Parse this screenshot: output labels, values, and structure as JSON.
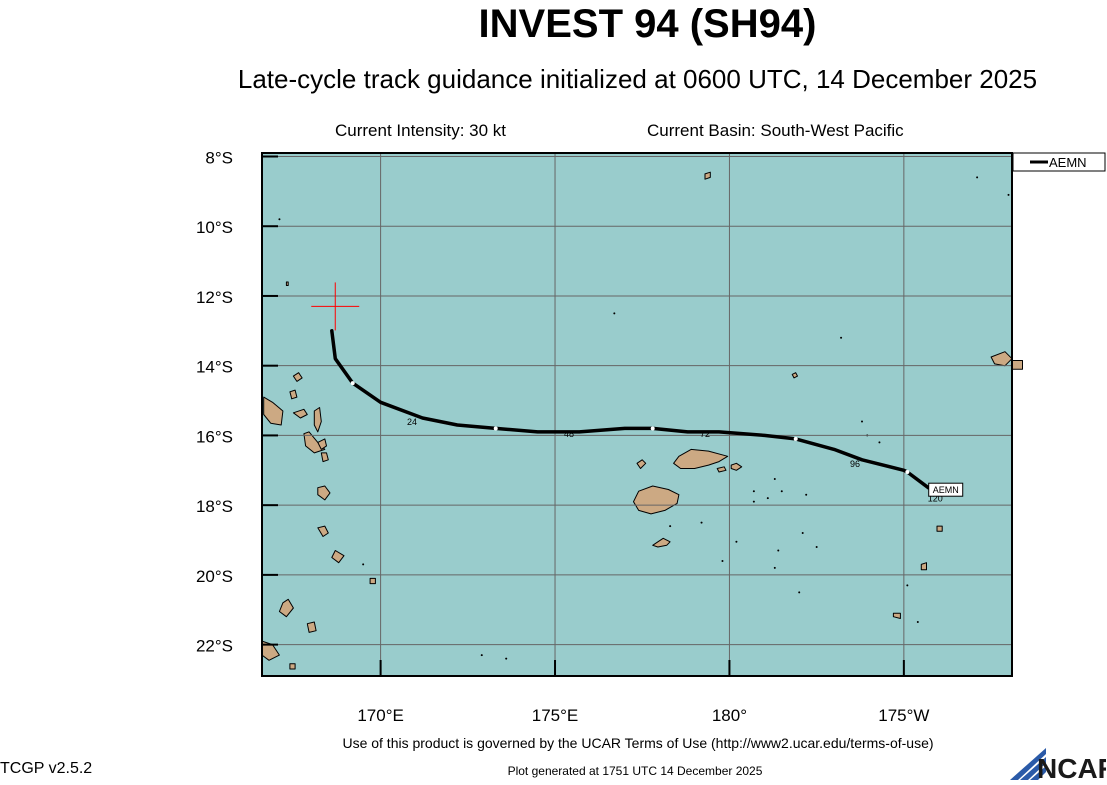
{
  "header": {
    "title": "INVEST 94 (SH94)",
    "subtitle": "Late-cycle track guidance initialized at 0600 UTC, 14 December 2025",
    "intensity": "Current Intensity: 30 kt",
    "basin": "Current Basin: South-West Pacific"
  },
  "map": {
    "lon_range": [
      166.6,
      188.1
    ],
    "lat_range": [
      -22.9,
      -7.9
    ],
    "ocean_color": "#99cccc",
    "land_color": "#cca983",
    "lat_ticks": [
      {
        "value": -8,
        "label": "8°S"
      },
      {
        "value": -10,
        "label": "10°S"
      },
      {
        "value": -12,
        "label": "12°S"
      },
      {
        "value": -14,
        "label": "14°S"
      },
      {
        "value": -16,
        "label": "16°S"
      },
      {
        "value": -18,
        "label": "18°S"
      },
      {
        "value": -20,
        "label": "20°S"
      },
      {
        "value": -22,
        "label": "22°S"
      }
    ],
    "lon_ticks": [
      {
        "value": 170,
        "label": "170°E"
      },
      {
        "value": 175,
        "label": "175°E"
      },
      {
        "value": 180,
        "label": "180°"
      },
      {
        "value": 185,
        "label": "175°W"
      }
    ],
    "current_position": {
      "lon": 168.7,
      "lat": -12.3,
      "color": "#ff0000"
    },
    "legend": {
      "label": "AEMN"
    },
    "track": {
      "name": "AEMN",
      "points": [
        [
          168.6,
          -13.0
        ],
        [
          168.7,
          -13.8
        ],
        [
          169.2,
          -14.5
        ],
        [
          170.0,
          -15.05
        ],
        [
          171.2,
          -15.5
        ],
        [
          172.2,
          -15.7
        ],
        [
          173.3,
          -15.8
        ],
        [
          174.5,
          -15.9
        ],
        [
          175.7,
          -15.9
        ],
        [
          177.0,
          -15.8
        ],
        [
          177.8,
          -15.8
        ],
        [
          178.8,
          -15.9
        ],
        [
          179.7,
          -15.9
        ],
        [
          181.0,
          -16.0
        ],
        [
          181.9,
          -16.1
        ],
        [
          183.0,
          -16.4
        ],
        [
          183.8,
          -16.7
        ],
        [
          185.0,
          -17.0
        ],
        [
          185.1,
          -17.05
        ],
        [
          185.7,
          -17.5
        ]
      ],
      "white_ticks": [
        [
          169.2,
          -14.5
        ],
        [
          173.3,
          -15.8
        ],
        [
          177.8,
          -15.8
        ],
        [
          181.9,
          -16.1
        ],
        [
          185.1,
          -17.05
        ]
      ],
      "hour_labels": [
        {
          "label": "24",
          "lon": 170.9,
          "lat": -15.7
        },
        {
          "label": "48",
          "lon": 175.4,
          "lat": -16.05
        },
        {
          "label": "72",
          "lon": 179.3,
          "lat": -16.05
        },
        {
          "label": "96",
          "lon": 183.6,
          "lat": -16.9
        },
        {
          "label": "120",
          "lon": 185.9,
          "lat": -17.9
        }
      ],
      "end_label": {
        "label": "AEMN",
        "lon": 186.2,
        "lat": -17.6
      }
    },
    "islands": [
      [
        [
          179.95,
          -16.6
        ],
        [
          179.4,
          -16.45
        ],
        [
          178.9,
          -16.4
        ],
        [
          178.55,
          -16.6
        ],
        [
          178.4,
          -16.8
        ],
        [
          178.6,
          -16.95
        ],
        [
          179.0,
          -16.95
        ],
        [
          179.4,
          -16.85
        ],
        [
          179.7,
          -16.75
        ]
      ],
      [
        [
          178.25,
          -17.55
        ],
        [
          177.8,
          -17.45
        ],
        [
          177.4,
          -17.6
        ],
        [
          177.25,
          -17.9
        ],
        [
          177.4,
          -18.15
        ],
        [
          177.75,
          -18.25
        ],
        [
          178.15,
          -18.15
        ],
        [
          178.5,
          -17.95
        ],
        [
          178.55,
          -17.7
        ]
      ],
      [
        [
          177.95,
          -19.05
        ],
        [
          178.1,
          -18.95
        ],
        [
          178.3,
          -19.05
        ],
        [
          178.2,
          -19.15
        ],
        [
          177.95,
          -19.2
        ],
        [
          177.8,
          -19.15
        ]
      ],
      [
        [
          180.05,
          -16.85
        ],
        [
          180.2,
          -16.8
        ],
        [
          180.35,
          -16.9
        ],
        [
          180.2,
          -17.0
        ],
        [
          180.05,
          -16.95
        ]
      ],
      [
        [
          179.65,
          -16.95
        ],
        [
          179.85,
          -16.9
        ],
        [
          179.9,
          -17.0
        ],
        [
          179.7,
          -17.05
        ]
      ],
      [
        [
          177.35,
          -16.8
        ],
        [
          177.5,
          -16.7
        ],
        [
          177.6,
          -16.8
        ],
        [
          177.45,
          -16.95
        ]
      ],
      [
        [
          166.65,
          -14.9
        ],
        [
          166.9,
          -15.05
        ],
        [
          167.2,
          -15.3
        ],
        [
          167.15,
          -15.7
        ],
        [
          166.85,
          -15.65
        ],
        [
          166.65,
          -15.4
        ]
      ],
      [
        [
          167.5,
          -15.35
        ],
        [
          167.8,
          -15.25
        ],
        [
          167.9,
          -15.4
        ],
        [
          167.7,
          -15.5
        ]
      ],
      [
        [
          167.8,
          -15.95
        ],
        [
          167.95,
          -15.9
        ],
        [
          168.2,
          -16.2
        ],
        [
          168.4,
          -16.4
        ],
        [
          168.1,
          -16.5
        ],
        [
          167.85,
          -16.3
        ]
      ],
      [
        [
          168.1,
          -15.3
        ],
        [
          168.25,
          -15.2
        ],
        [
          168.3,
          -15.6
        ],
        [
          168.2,
          -15.9
        ],
        [
          168.1,
          -15.7
        ]
      ],
      [
        [
          168.2,
          -16.2
        ],
        [
          168.4,
          -16.1
        ],
        [
          168.45,
          -16.3
        ],
        [
          168.3,
          -16.4
        ]
      ],
      [
        [
          168.3,
          -16.5
        ],
        [
          168.45,
          -16.5
        ],
        [
          168.5,
          -16.7
        ],
        [
          168.35,
          -16.75
        ]
      ],
      [
        [
          168.2,
          -17.5
        ],
        [
          168.4,
          -17.45
        ],
        [
          168.55,
          -17.65
        ],
        [
          168.4,
          -17.85
        ],
        [
          168.2,
          -17.7
        ]
      ],
      [
        [
          168.2,
          -18.65
        ],
        [
          168.4,
          -18.6
        ],
        [
          168.5,
          -18.8
        ],
        [
          168.35,
          -18.9
        ]
      ],
      [
        [
          168.7,
          -19.3
        ],
        [
          168.95,
          -19.45
        ],
        [
          168.8,
          -19.65
        ],
        [
          168.6,
          -19.5
        ]
      ],
      [
        [
          167.5,
          -14.3
        ],
        [
          167.65,
          -14.2
        ],
        [
          167.75,
          -14.35
        ],
        [
          167.6,
          -14.45
        ]
      ],
      [
        [
          167.4,
          -14.75
        ],
        [
          167.55,
          -14.7
        ],
        [
          167.6,
          -14.9
        ],
        [
          167.45,
          -14.95
        ]
      ],
      [
        [
          167.2,
          -20.8
        ],
        [
          167.35,
          -20.7
        ],
        [
          167.5,
          -20.95
        ],
        [
          167.3,
          -21.2
        ],
        [
          167.1,
          -21.05
        ]
      ],
      [
        [
          167.9,
          -21.4
        ],
        [
          168.1,
          -21.35
        ],
        [
          168.15,
          -21.6
        ],
        [
          167.95,
          -21.65
        ]
      ],
      [
        [
          166.6,
          -21.9
        ],
        [
          166.9,
          -22.0
        ],
        [
          167.1,
          -22.3
        ],
        [
          166.8,
          -22.45
        ],
        [
          166.6,
          -22.3
        ]
      ],
      [
        [
          167.4,
          -22.55
        ],
        [
          167.55,
          -22.55
        ],
        [
          167.55,
          -22.7
        ],
        [
          167.4,
          -22.7
        ]
      ],
      [
        [
          167.3,
          -11.6
        ],
        [
          167.35,
          -11.6
        ],
        [
          167.35,
          -11.7
        ],
        [
          167.3,
          -11.7
        ]
      ],
      [
        [
          169.7,
          -20.1
        ],
        [
          169.85,
          -20.1
        ],
        [
          169.85,
          -20.25
        ],
        [
          169.7,
          -20.25
        ]
      ],
      [
        [
          187.5,
          -13.75
        ],
        [
          187.9,
          -13.6
        ],
        [
          188.1,
          -13.8
        ],
        [
          187.9,
          -14.0
        ],
        [
          187.6,
          -13.95
        ]
      ],
      [
        [
          188.1,
          -13.85
        ],
        [
          188.4,
          -13.85
        ],
        [
          188.4,
          -14.1
        ],
        [
          188.1,
          -14.1
        ]
      ],
      [
        [
          179.3,
          -8.5
        ],
        [
          179.45,
          -8.45
        ],
        [
          179.45,
          -8.6
        ],
        [
          179.3,
          -8.65
        ]
      ],
      [
        [
          181.8,
          -14.25
        ],
        [
          181.9,
          -14.2
        ],
        [
          181.95,
          -14.3
        ],
        [
          181.85,
          -14.35
        ]
      ],
      [
        [
          185.95,
          -18.6
        ],
        [
          186.1,
          -18.6
        ],
        [
          186.1,
          -18.75
        ],
        [
          185.95,
          -18.75
        ]
      ],
      [
        [
          185.5,
          -19.7
        ],
        [
          185.65,
          -19.65
        ],
        [
          185.65,
          -19.85
        ],
        [
          185.5,
          -19.85
        ]
      ],
      [
        [
          184.7,
          -21.1
        ],
        [
          184.9,
          -21.1
        ],
        [
          184.9,
          -21.25
        ],
        [
          184.7,
          -21.2
        ]
      ]
    ],
    "dots": [
      [
        167.1,
        -9.8
      ],
      [
        169.5,
        -19.7
      ],
      [
        176.7,
        -12.5
      ],
      [
        183.8,
        -15.6
      ],
      [
        184.3,
        -16.2
      ],
      [
        181.3,
        -17.25
      ],
      [
        181.5,
        -17.6
      ],
      [
        181.1,
        -17.8
      ],
      [
        182.2,
        -17.7
      ],
      [
        180.7,
        -17.9
      ],
      [
        179.2,
        -18.5
      ],
      [
        182.1,
        -18.8
      ],
      [
        182.5,
        -19.2
      ],
      [
        181.4,
        -19.3
      ],
      [
        180.2,
        -19.05
      ],
      [
        183.2,
        -13.2
      ],
      [
        182.0,
        -20.5
      ],
      [
        179.8,
        -19.6
      ],
      [
        181.3,
        -19.8
      ],
      [
        187.1,
        -8.6
      ],
      [
        188.0,
        -9.1
      ],
      [
        173.6,
        -22.4
      ],
      [
        172.9,
        -22.3
      ],
      [
        185.1,
        -20.3
      ],
      [
        185.4,
        -21.35
      ],
      [
        180.7,
        -17.6
      ],
      [
        178.3,
        -18.6
      ],
      [
        183.95,
        -16.0
      ]
    ]
  },
  "footer": {
    "terms": "Use of this product is governed by the UCAR Terms of Use (http://www2.ucar.edu/terms-of-use)",
    "version": "TCGP v2.5.2",
    "generated": "Plot generated at 1751 UTC   14 December 2025",
    "logo_text": "NCAR"
  }
}
